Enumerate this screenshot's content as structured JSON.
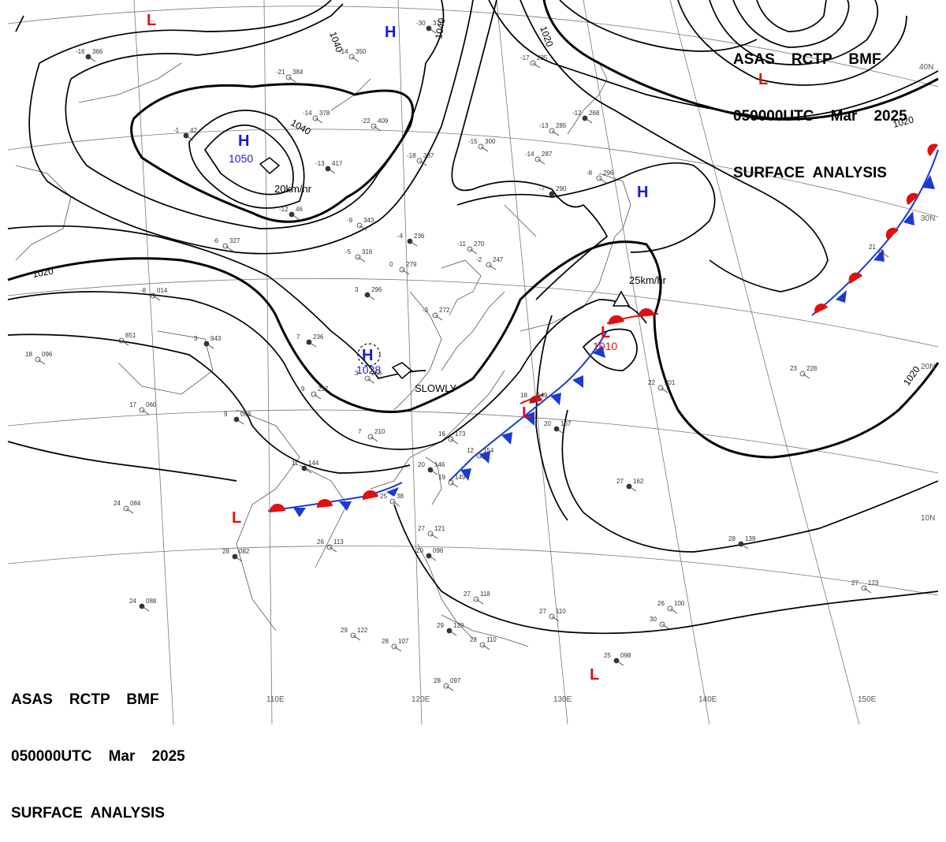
{
  "header_top": {
    "line1": "ASAS    RCTP    BMF",
    "line2": "050000UTC    Mar    2025",
    "line3": "SURFACE  ANALYSIS"
  },
  "header_bottom": {
    "line1": "ASAS    RCTP    BMF",
    "line2": "050000UTC    Mar    2025",
    "line3": "SURFACE  ANALYSIS"
  },
  "isobar_labels": {
    "a": "1040",
    "b": "1040",
    "c": "1040",
    "d": "1020",
    "e": "1020",
    "f": "1020",
    "g": "1020"
  },
  "highs": [
    {
      "name": "high-1050",
      "label": "H",
      "pressure": "1050"
    },
    {
      "name": "high-1028",
      "label": "H",
      "pressure": "1028"
    },
    {
      "name": "high-north",
      "label": "H",
      "pressure": ""
    },
    {
      "name": "high-east",
      "label": "H",
      "pressure": ""
    }
  ],
  "lows": [
    {
      "name": "low-1010",
      "label": "L",
      "pressure": "1010"
    },
    {
      "name": "low-nw",
      "label": "L"
    },
    {
      "name": "low-ne",
      "label": "L"
    },
    {
      "name": "low-sw",
      "label": "L"
    },
    {
      "name": "low-taiwan",
      "label": "L"
    },
    {
      "name": "low-south",
      "label": "L"
    }
  ],
  "motion": {
    "m1": "20km/hr",
    "m2": "SLOWLY",
    "m3": "25km/hr"
  },
  "lat_labels": {
    "l40": "40N",
    "l30": "30N",
    "l20": "20N",
    "l10": "10N"
  },
  "lon_labels": {
    "l110": "110E",
    "l120": "120E",
    "l130": "130E",
    "l140": "140E",
    "l150": "150E"
  },
  "stations": [
    {
      "t": "-16",
      "p": "366"
    },
    {
      "t": "-21",
      "p": "384"
    },
    {
      "t": "-14",
      "p": "350"
    },
    {
      "t": "-30",
      "p": "376"
    },
    {
      "t": "-14",
      "p": "378"
    },
    {
      "t": "-22",
      "p": "409"
    },
    {
      "t": "-13",
      "p": "417"
    },
    {
      "t": "-18",
      "p": "337"
    },
    {
      "t": "-15",
      "p": "300"
    },
    {
      "t": "-12",
      "p": "46"
    },
    {
      "t": "-9",
      "p": "343"
    },
    {
      "t": "-5",
      "p": "316"
    },
    {
      "t": "-4",
      "p": "236"
    },
    {
      "t": "-11",
      "p": "270"
    },
    {
      "t": "-2",
      "p": "247"
    },
    {
      "t": "-7",
      "p": "290"
    },
    {
      "t": "-14",
      "p": "287"
    },
    {
      "t": "-13",
      "p": "285"
    },
    {
      "t": "-12",
      "p": "268"
    },
    {
      "t": "-17",
      "p": "235"
    },
    {
      "t": "-8",
      "p": "296"
    },
    {
      "t": "-1",
      "p": "42"
    },
    {
      "t": "-6",
      "p": "327"
    },
    {
      "t": "0",
      "p": "279"
    },
    {
      "t": "3",
      "p": "296"
    },
    {
      "t": "-3",
      "p": "272"
    },
    {
      "t": "-8",
      "p": "014"
    },
    {
      "t": "3",
      "p": "943"
    },
    {
      "t": "",
      "p": "851"
    },
    {
      "t": "18",
      "p": "096"
    },
    {
      "t": "7",
      "p": "236"
    },
    {
      "t": "3",
      "p": "256"
    },
    {
      "t": "9",
      "p": "237"
    },
    {
      "t": "9",
      "p": "098"
    },
    {
      "t": "7",
      "p": "210"
    },
    {
      "t": "17",
      "p": "060"
    },
    {
      "t": "11",
      "p": "144"
    },
    {
      "t": "16",
      "p": "173"
    },
    {
      "t": "12",
      "p": "154"
    },
    {
      "t": "20",
      "p": "146"
    },
    {
      "t": "19",
      "p": "149"
    },
    {
      "t": "18",
      "p": "149"
    },
    {
      "t": "20",
      "p": "167"
    },
    {
      "t": "22",
      "p": "201"
    },
    {
      "t": "23",
      "p": "228"
    },
    {
      "t": "27",
      "p": "162"
    },
    {
      "t": "25",
      "p": "38"
    },
    {
      "t": "24",
      "p": "084"
    },
    {
      "t": "28",
      "p": "082"
    },
    {
      "t": "26",
      "p": "113"
    },
    {
      "t": "27",
      "p": "121"
    },
    {
      "t": "20",
      "p": "096"
    },
    {
      "t": "27",
      "p": "118"
    },
    {
      "t": "27",
      "p": "110"
    },
    {
      "t": "28",
      "p": "139"
    },
    {
      "t": "26",
      "p": "100"
    },
    {
      "t": "27",
      "p": "123"
    },
    {
      "t": "24",
      "p": "088"
    },
    {
      "t": "29",
      "p": "122"
    },
    {
      "t": "28",
      "p": "107"
    },
    {
      "t": "29",
      "p": "129"
    },
    {
      "t": "28",
      "p": "110"
    },
    {
      "t": "28",
      "p": "097"
    },
    {
      "t": "25",
      "p": "098"
    },
    {
      "t": "21",
      "p": ""
    },
    {
      "t": "30",
      "p": ""
    }
  ],
  "colors": {
    "high": "#1a1ad4",
    "low": "#e01010",
    "warm": "#e01010",
    "cold": "#1a3ad4",
    "isobar": "#000000",
    "coast": "#555555"
  }
}
